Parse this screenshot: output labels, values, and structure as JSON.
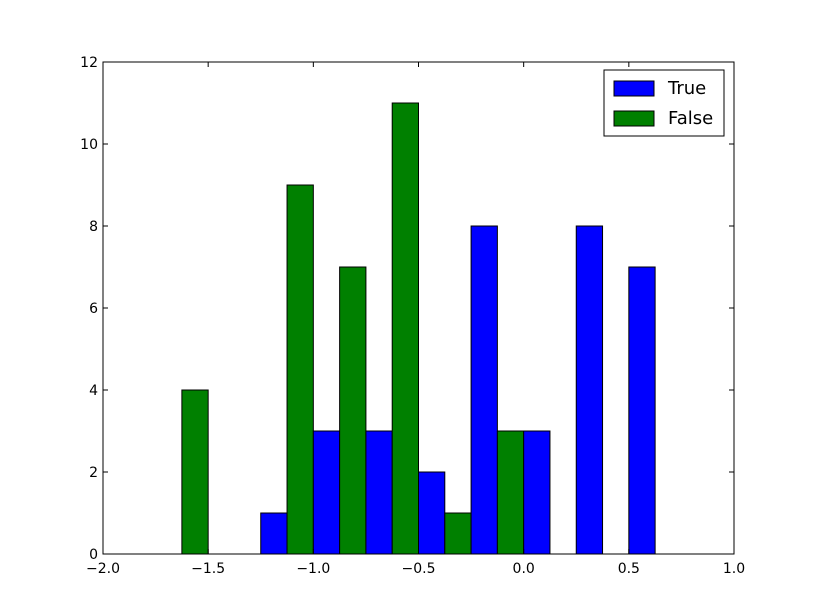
{
  "chart_data": {
    "type": "bar",
    "title": "",
    "xlabel": "",
    "ylabel": "",
    "xlim": [
      -2.0,
      1.0
    ],
    "ylim": [
      0,
      12
    ],
    "xticks": [
      -2.0,
      -1.5,
      -1.0,
      -0.5,
      0.0,
      0.5,
      1.0
    ],
    "xtick_labels": [
      "−2.0",
      "−1.5",
      "−1.0",
      "−0.5",
      "0.0",
      "0.5",
      "1.0"
    ],
    "yticks": [
      0,
      2,
      4,
      6,
      8,
      10,
      12
    ],
    "ytick_labels": [
      "0",
      "2",
      "4",
      "6",
      "8",
      "10",
      "12"
    ],
    "bins": [
      [
        -1.75,
        -1.5
      ],
      [
        -1.5,
        -1.25
      ],
      [
        -1.25,
        -1.0
      ],
      [
        -1.0,
        -0.75
      ],
      [
        -0.75,
        -0.5
      ],
      [
        -0.5,
        -0.25
      ],
      [
        -0.25,
        0.0
      ],
      [
        0.0,
        0.25
      ],
      [
        0.25,
        0.5
      ],
      [
        0.5,
        0.75
      ]
    ],
    "series": [
      {
        "name": "True",
        "color": "#0000ff",
        "values": [
          0,
          0,
          1,
          3,
          3,
          2,
          8,
          3,
          8,
          7
        ]
      },
      {
        "name": "False",
        "color": "#008000",
        "values": [
          4,
          0,
          9,
          7,
          11,
          1,
          3,
          0,
          0,
          0
        ]
      }
    ],
    "grid": false,
    "legend": {
      "position": "top-right"
    }
  }
}
